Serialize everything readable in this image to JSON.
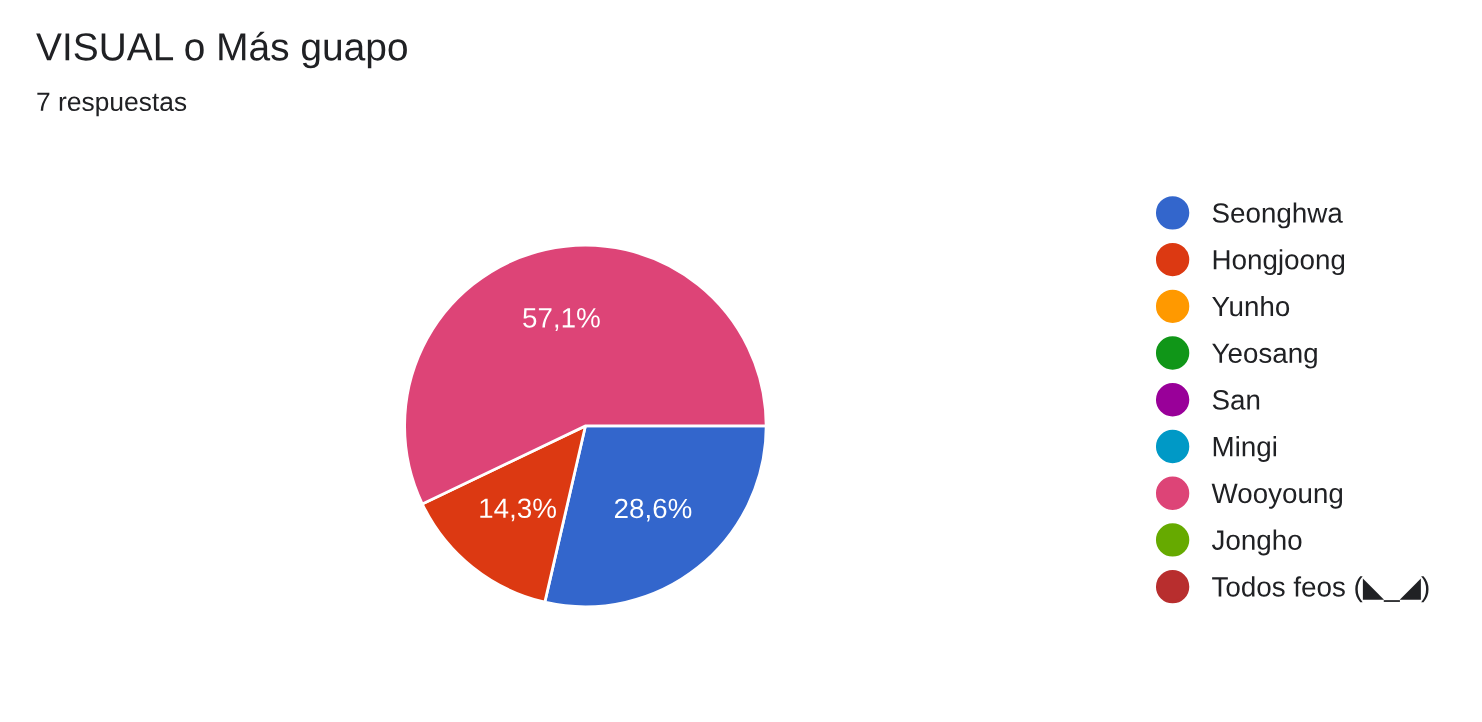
{
  "chart_data": {
    "type": "pie",
    "title": "VISUAL o Más guapo",
    "subtitle": "7 respuestas",
    "categories": [
      "Seonghwa",
      "Hongjoong",
      "Yunho",
      "Yeosang",
      "San",
      "Mingi",
      "Wooyoung",
      "Jongho",
      "Todos feos (◣_◢)"
    ],
    "values": [
      28.6,
      14.3,
      0,
      0,
      0,
      0,
      57.1,
      0,
      0
    ],
    "colors": [
      "#3366cc",
      "#dc3912",
      "#ff9900",
      "#109618",
      "#990099",
      "#0099c6",
      "#dd4477",
      "#66aa00",
      "#b82e2e"
    ],
    "value_labels": [
      "28,6%",
      "14,3%",
      null,
      null,
      null,
      null,
      "57,1%",
      null,
      null
    ],
    "legend": "right"
  }
}
